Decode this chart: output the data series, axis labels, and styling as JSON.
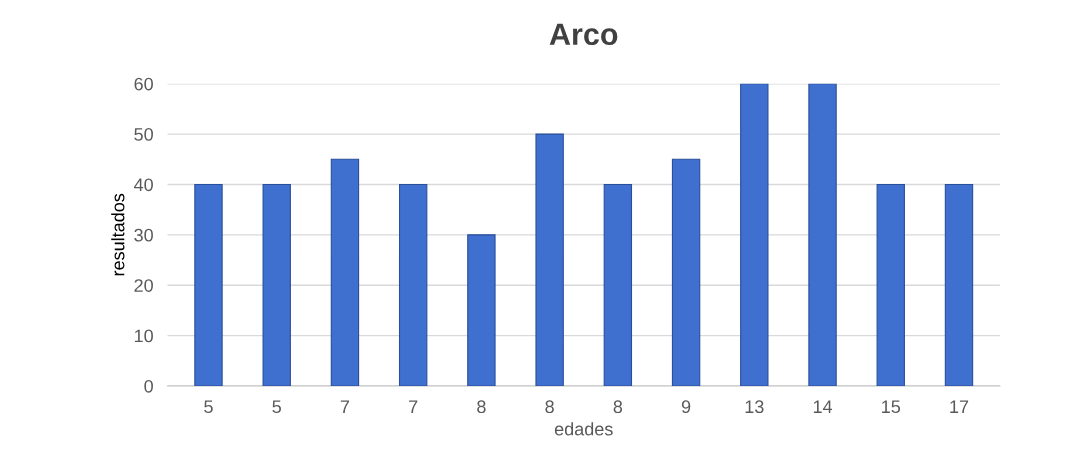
{
  "chart_data": {
    "type": "bar",
    "title": "Arco",
    "xlabel": "edades",
    "ylabel": "resultados",
    "categories": [
      "5",
      "5",
      "7",
      "7",
      "8",
      "8",
      "8",
      "9",
      "13",
      "14",
      "15",
      "17"
    ],
    "values": [
      40,
      40,
      45,
      40,
      30,
      50,
      40,
      45,
      60,
      60,
      40,
      40
    ],
    "color": "#3f6fcf",
    "ylim": [
      0,
      60
    ],
    "yticks": [
      0,
      10,
      20,
      30,
      40,
      50,
      60
    ],
    "grid": "y"
  }
}
